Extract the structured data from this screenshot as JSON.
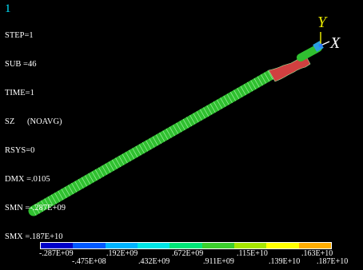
{
  "viewport": {
    "background": "#000000",
    "window_number": "1"
  },
  "info": {
    "lines": [
      "STEP=1",
      "SUB =46",
      "TIME=1",
      "SZ      (NOAVG)",
      "RSYS=0",
      "DMX =.0105",
      "SMN =-.287E+09",
      "SMX =.187E+10"
    ]
  },
  "triad": {
    "y_label": "Y",
    "x_label": "X",
    "y_color": "#e6e600",
    "x_color": "#ffffff"
  },
  "legend": {
    "colors": [
      "#0000c8",
      "#0059ff",
      "#00b4ff",
      "#00e6e6",
      "#00e678",
      "#3ccf2d",
      "#a6e600",
      "#ffff00",
      "#ffad00",
      "#ff3c1e"
    ],
    "labels": [
      "-.287E+09",
      "-.475E+08",
      ".192E+09",
      ".432E+09",
      ".672E+09",
      ".911E+09",
      ".115E+10",
      ".139E+10",
      ".163E+10",
      ".187E+10"
    ]
  },
  "model": {
    "shaft_color": "#30c030",
    "neck_color": "#d04040",
    "ring_color": "#9ef09e"
  }
}
